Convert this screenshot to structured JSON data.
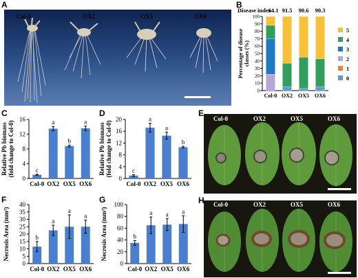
{
  "panels": {
    "A": {
      "letter": "A",
      "labels": [
        "Col-0",
        "OX2",
        "OX5",
        "OX6"
      ],
      "colors": {
        "background": "#2a4d86",
        "roots": "#e4dfd2",
        "scale_bar": "#ffffff"
      }
    },
    "E": {
      "letter": "E",
      "labels": [
        "Col-0",
        "OX2",
        "OX5",
        "OX6"
      ],
      "colors": {
        "background": "#17170f",
        "leaf": "#5f9a3c",
        "lesion": "#8e8376",
        "scale_bar": "#ffffff"
      }
    },
    "H": {
      "letter": "H",
      "labels": [
        "Col-0",
        "OX2",
        "OX5",
        "OX6"
      ],
      "colors": {
        "background": "#17170f",
        "leaf": "#4f8c34",
        "lesion": "#6f4a2a",
        "scale_bar": "#ffffff"
      }
    }
  },
  "chart_data": [
    {
      "id": "B",
      "letter": "B",
      "type": "bar",
      "stacked": true,
      "categories": [
        "Col-0",
        "OX2",
        "OX5",
        "OX6"
      ],
      "disease_index_label": "Disease index",
      "disease_index": [
        "64.1",
        "91.5",
        "90.6",
        "90.3"
      ],
      "ylabel": "Percentage of disease classes (%)",
      "ylabel_lines": [
        "Percentage of disease",
        "classes (%)"
      ],
      "ylim": [
        0,
        100
      ],
      "yticks": [
        0,
        10,
        20,
        30,
        40,
        50,
        60,
        70,
        80,
        90,
        100
      ],
      "legend": "right",
      "series": [
        {
          "name": "0",
          "color": "#5b9bd5",
          "values": [
            0,
            5,
            3,
            5
          ]
        },
        {
          "name": "1",
          "color": "#ed7d31",
          "values": [
            0,
            0,
            0,
            0
          ]
        },
        {
          "name": "2",
          "color": "#b4a7d6",
          "values": [
            22,
            0,
            0,
            0
          ]
        },
        {
          "name": "3",
          "color": "#1f7bc1",
          "values": [
            48,
            0,
            0,
            0
          ]
        },
        {
          "name": "4",
          "color": "#31a05c",
          "values": [
            18,
            32,
            42,
            38
          ]
        },
        {
          "name": "5",
          "color": "#f7c035",
          "values": [
            12,
            63,
            55,
            57
          ]
        }
      ],
      "legend_order": [
        "5",
        "4",
        "3",
        "2",
        "1",
        "0"
      ]
    },
    {
      "id": "C",
      "letter": "C",
      "type": "bar",
      "categories": [
        "Col-0",
        "OX2",
        "OX5",
        "OX6"
      ],
      "values": [
        1,
        13.5,
        8.8,
        13.6
      ],
      "errors": [
        0.15,
        0.6,
        0.25,
        0.6
      ],
      "letters": [
        "c",
        "a",
        "b",
        "a"
      ],
      "ylabel_lines": [
        "Relative Pb biomass",
        "(fold change to Col-0)"
      ],
      "ylim": [
        0,
        16
      ],
      "yticks": [
        0,
        4,
        8,
        12,
        16
      ],
      "color": "#4a7fd0"
    },
    {
      "id": "D",
      "letter": "D",
      "type": "bar",
      "categories": [
        "Col-0",
        "OX2",
        "OX5",
        "OX6"
      ],
      "values": [
        1,
        17.2,
        14.5,
        10.6
      ],
      "errors": [
        0.3,
        1.5,
        1.2,
        0.3
      ],
      "letters": [
        "c",
        "a",
        "a",
        "b"
      ],
      "ylabel_lines": [
        "Relative Pb biomass",
        "(fold change to Col-0)"
      ],
      "ylim": [
        0,
        20
      ],
      "yticks": [
        0,
        4,
        8,
        12,
        16,
        20
      ],
      "color": "#4a7fd0"
    },
    {
      "id": "F",
      "letter": "F",
      "type": "bar",
      "categories": [
        "Col-0",
        "OX2",
        "OX5",
        "OX6"
      ],
      "values": [
        11.5,
        22.5,
        25,
        25
      ],
      "errors": [
        3.5,
        3.5,
        8,
        4.5
      ],
      "letters": [
        "b",
        "a",
        "a",
        "a"
      ],
      "ylabel_lines": [
        "Necrosis Area (mm²)"
      ],
      "ylim": [
        0,
        40
      ],
      "yticks": [
        0,
        5,
        10,
        15,
        20,
        25,
        30,
        35,
        40
      ],
      "color": "#4a7fd0"
    },
    {
      "id": "G",
      "letter": "G",
      "type": "bar",
      "categories": [
        "Col-0",
        "OX2",
        "OX5",
        "OX6"
      ],
      "values": [
        35,
        65,
        66,
        67
      ],
      "errors": [
        4,
        14,
        10,
        14
      ],
      "letters": [
        "b",
        "a",
        "a",
        "a"
      ],
      "ylabel_lines": [
        "Necrosis Area (mm²)"
      ],
      "ylim": [
        0,
        100
      ],
      "yticks": [
        0,
        20,
        40,
        60,
        80,
        100
      ],
      "color": "#4a7fd0"
    }
  ]
}
